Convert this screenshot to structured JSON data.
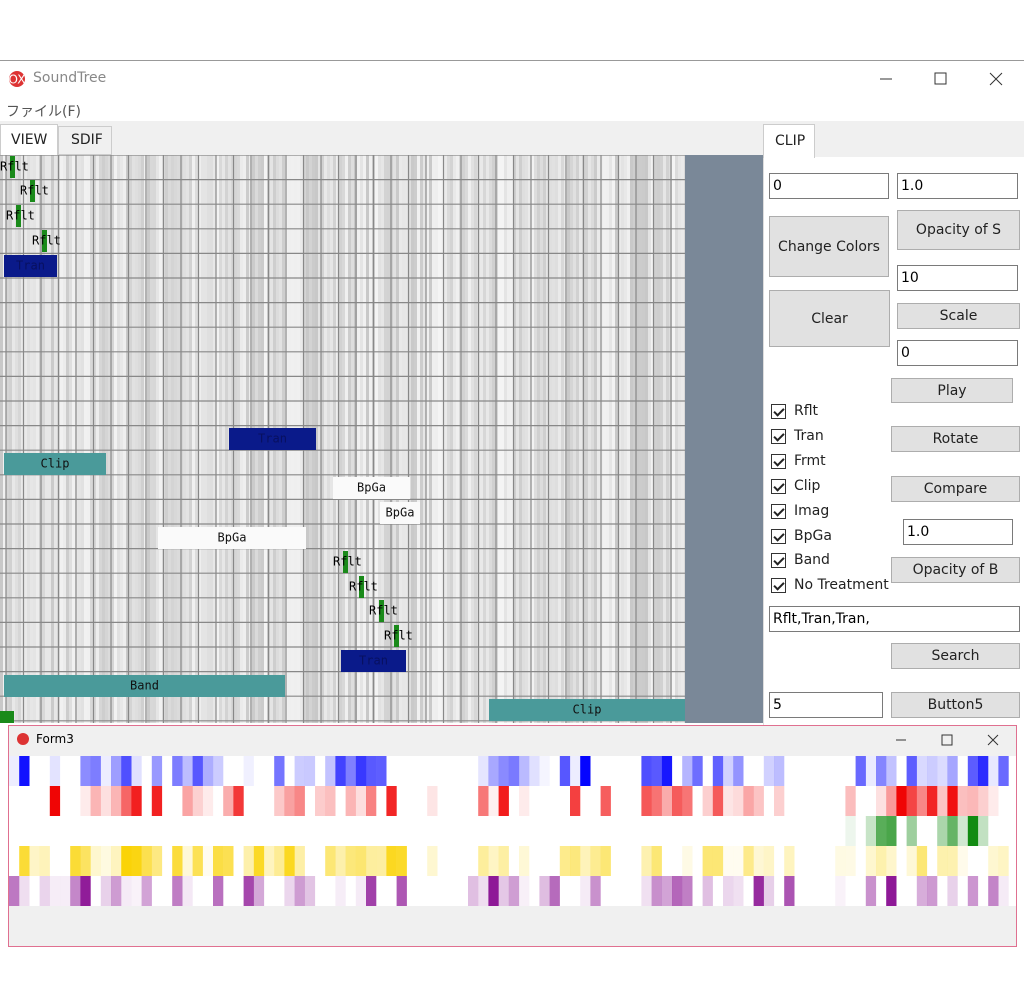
{
  "window": {
    "title": "SoundTree",
    "menu": "ファイル(F)"
  },
  "tabs": [
    "VIEW",
    "SDIF"
  ],
  "canvas": {
    "blocks": [
      "Rflt",
      "Rflt",
      "Rflt",
      "Rflt",
      "Tran",
      "Tran",
      "Clip",
      "BpGa",
      "BpGa",
      "BpGa",
      "Rflt",
      "Rflt",
      "Rflt",
      "Rflt",
      "Tran",
      "Band",
      "Clip"
    ]
  },
  "panel": {
    "tab": "CLIP",
    "inputs": [
      "0",
      "1.0",
      "10",
      "0",
      "1.0",
      "Rflt,Tran,Tran,",
      "5"
    ],
    "buttons": [
      "Change Colors",
      "Opacity of S",
      "Clear",
      "Scale",
      "Play",
      "Rotate",
      "Compare",
      "Opacity of B",
      "Search",
      "Button5"
    ],
    "checkboxes": [
      "Rflt",
      "Tran",
      "Frmt",
      "Clip",
      "Imag",
      "BpGa",
      "Band",
      "No Treatment"
    ]
  },
  "form3": {
    "title": "Form3"
  }
}
